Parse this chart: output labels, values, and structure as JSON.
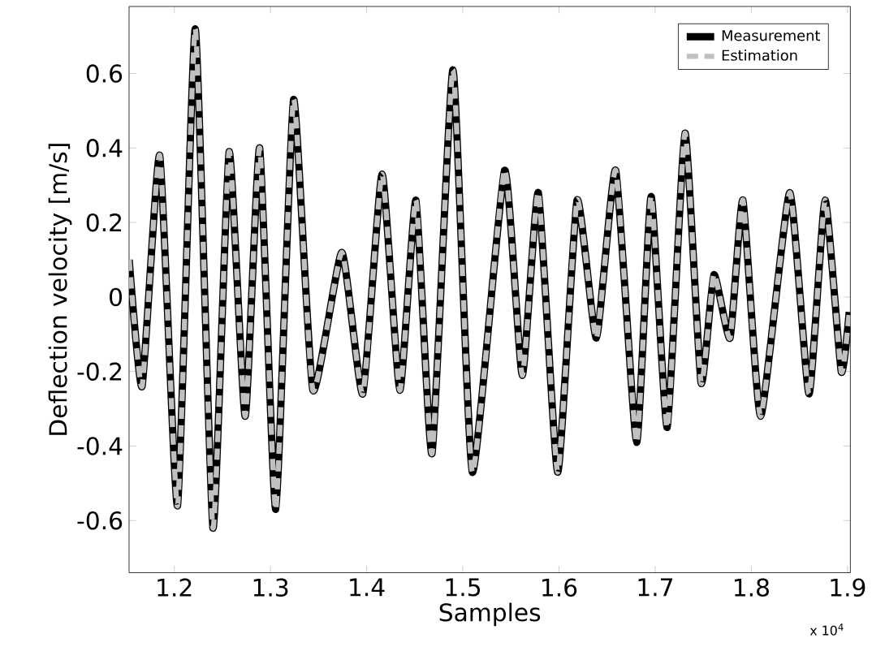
{
  "chart_data": {
    "type": "line",
    "xlabel": "Samples",
    "ylabel": "Deflection velocity [m/s]",
    "x": [
      1.1531,
      1.1665,
      1.1849,
      1.2034,
      1.2218,
      1.2402,
      1.257,
      1.2737,
      1.2888,
      1.3055,
      1.324,
      1.3441,
      1.3742,
      1.396,
      1.4161,
      1.4345,
      1.4513,
      1.468,
      1.4898,
      1.5099,
      1.5434,
      1.5618,
      1.5786,
      1.5987,
      1.6188,
      1.6389,
      1.659,
      1.6807,
      1.6958,
      1.7126,
      1.731,
      1.7477,
      1.7611,
      1.7779,
      1.7913,
      1.8097,
      1.8399,
      1.86,
      1.8767,
      1.8935,
      1.9018
    ],
    "series": [
      {
        "name": "Measurement",
        "color": "#000000",
        "line_style": "solid",
        "values": [
          0.1,
          -0.24,
          0.38,
          -0.56,
          0.72,
          -0.62,
          0.39,
          -0.32,
          0.4,
          -0.57,
          0.53,
          -0.25,
          0.12,
          -0.26,
          0.33,
          -0.25,
          0.26,
          -0.42,
          0.61,
          -0.47,
          0.34,
          -0.21,
          0.28,
          -0.47,
          0.26,
          -0.11,
          0.34,
          -0.39,
          0.27,
          -0.35,
          0.44,
          -0.23,
          0.06,
          -0.11,
          0.26,
          -0.32,
          0.28,
          -0.26,
          0.26,
          -0.2,
          -0.04
        ]
      },
      {
        "name": "Estimation",
        "color": "#c0c0c0",
        "line_style": "dashed",
        "values": [
          0.1,
          -0.24,
          0.38,
          -0.56,
          0.72,
          -0.62,
          0.39,
          -0.32,
          0.4,
          -0.57,
          0.53,
          -0.25,
          0.12,
          -0.26,
          0.33,
          -0.25,
          0.26,
          -0.42,
          0.61,
          -0.47,
          0.34,
          -0.21,
          0.28,
          -0.47,
          0.26,
          -0.11,
          0.34,
          -0.39,
          0.27,
          -0.35,
          0.44,
          -0.23,
          0.06,
          -0.11,
          0.26,
          -0.32,
          0.28,
          -0.26,
          0.26,
          -0.2,
          -0.04
        ]
      }
    ],
    "xlim": [
      1.153,
      1.903
    ],
    "ylim": [
      -0.74,
      0.78
    ],
    "xticks": [
      1.2,
      1.3,
      1.4,
      1.5,
      1.6,
      1.7,
      1.8,
      1.9
    ],
    "yticks": [
      -0.6,
      -0.4,
      -0.2,
      0,
      0.2,
      0.4,
      0.6
    ],
    "annotations": [
      "x 10$^{4}$"
    ],
    "grid": false,
    "legend": "top right",
    "marker": "none"
  }
}
